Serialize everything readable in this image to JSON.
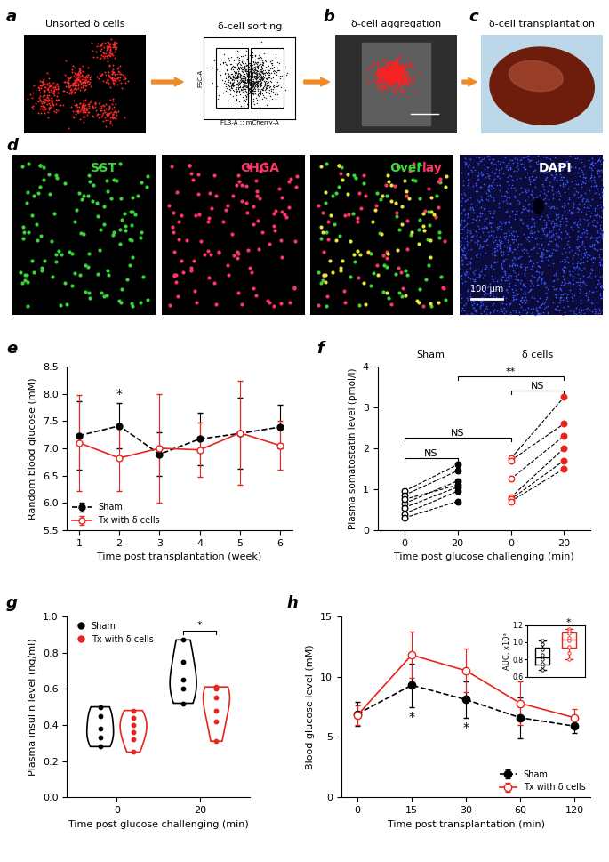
{
  "figure": {
    "panel_labels": [
      "a",
      "b",
      "c",
      "d",
      "e",
      "f",
      "g",
      "h"
    ],
    "image_titles": [
      "Unsorted δ cells",
      "δ-cell sorting",
      "δ-cell aggregation",
      "δ-cell transplantation"
    ],
    "sorting_axes": {
      "xlabel": "FL3-A :: mCherry-A",
      "ylabel": "FSC-A"
    },
    "stains": [
      {
        "parts": [
          {
            "text": "SST",
            "color": "#39d639"
          }
        ]
      },
      {
        "parts": [
          {
            "text": "CHGA",
            "color": "#ff3366"
          }
        ]
      },
      {
        "parts": [
          {
            "text": "Over",
            "color": "#39d639"
          },
          {
            "text": "lay",
            "color": "#ff3366"
          }
        ]
      },
      {
        "parts": [
          {
            "text": "DAPI",
            "color": "#ffffff"
          }
        ]
      }
    ],
    "scale_bar": "100 μm"
  },
  "chart_data": [
    {
      "type": "line",
      "xlabel": "Time post transplantation (week)",
      "ylabel": "Random blood glucose (mM)",
      "x": [
        1,
        2,
        3,
        4,
        5,
        6
      ],
      "xlim": [
        0.7,
        6.3
      ],
      "xticks": [
        1,
        2,
        3,
        4,
        5,
        6
      ],
      "ylim": [
        5.5,
        8.5
      ],
      "yticks": [
        5.5,
        {
          "value": 6,
          "label": "6.0"
        },
        6.5,
        {
          "value": 7,
          "label": "7.0"
        },
        7.5,
        {
          "value": 8,
          "label": "8.0"
        },
        8.5
      ],
      "legend": "lower left",
      "series": [
        {
          "name": "Sham",
          "color": "#000000",
          "marker": "circle",
          "line_style": "dashed",
          "values": [
            7.23,
            7.41,
            6.89,
            7.17,
            7.27,
            7.39
          ],
          "errors": [
            0.63,
            0.42,
            0.4,
            0.48,
            0.65,
            0.4
          ]
        },
        {
          "name": "Tx with δ cells",
          "color": "#e8241c",
          "marker": "open_circle",
          "line_style": "solid",
          "values": [
            7.1,
            6.82,
            7.0,
            6.97,
            7.28,
            7.05
          ],
          "errors": [
            0.88,
            0.6,
            1.0,
            0.5,
            0.95,
            0.45
          ]
        }
      ],
      "annotations": [
        {
          "text": "*",
          "x": 2,
          "y": 7.88
        }
      ]
    },
    {
      "type": "paired_scatter",
      "xlabel": "Time post glucose challenging (min)",
      "ylabel": "Plasma somatostatin level (pmol/l)",
      "categories": [
        "0",
        "20",
        "0",
        "20"
      ],
      "ylim": [
        0,
        4
      ],
      "yticks": [
        0,
        1,
        2,
        3,
        4
      ],
      "series": [
        {
          "name": "Sham",
          "color": "#000000",
          "values": [
            [
              0.95,
              0.85,
              0.65,
              0.75,
              0.55,
              0.4,
              0.3
            ],
            [
              1.6,
              1.45,
              1.2,
              1.1,
              1.05,
              0.95,
              0.7
            ]
          ]
        },
        {
          "name": "δ cells",
          "color": "#e8241c",
          "values": [
            [
              1.75,
              1.7,
              1.25,
              0.8,
              0.75,
              0.7
            ],
            [
              3.25,
              2.6,
              2.3,
              2.0,
              1.7,
              1.5
            ]
          ]
        }
      ],
      "comparisons": [
        {
          "text": "NS",
          "between": [
            0,
            1
          ]
        },
        {
          "text": "NS",
          "between": [
            2,
            3
          ]
        },
        {
          "text": "NS",
          "between": [
            0,
            2
          ]
        },
        {
          "text": "**",
          "between": [
            1,
            3
          ]
        }
      ]
    },
    {
      "type": "violin",
      "xlabel": "Time post glucose challenging (min)",
      "ylabel": "Plasma insulin level (ng/ml)",
      "categories": [
        "0",
        "20"
      ],
      "ylim": [
        0,
        1.0
      ],
      "yticks": [
        {
          "value": 0,
          "label": "0.0"
        },
        {
          "value": 0.2,
          "label": "0.2"
        },
        {
          "value": 0.4,
          "label": "0.4"
        },
        {
          "value": 0.6,
          "label": "0.6"
        },
        {
          "value": 0.8,
          "label": "0.8"
        },
        {
          "value": 1.0,
          "label": "1.0"
        }
      ],
      "legend": "upper left",
      "series": [
        {
          "name": "Sham",
          "color": "#000000",
          "values": [
            [
              0.5,
              0.45,
              0.38,
              0.33,
              0.28
            ],
            [
              0.87,
              0.75,
              0.65,
              0.6,
              0.52
            ]
          ]
        },
        {
          "name": "Tx with δ cells",
          "color": "#e8241c",
          "values": [
            [
              0.48,
              0.44,
              0.4,
              0.36,
              0.32,
              0.25
            ],
            [
              0.61,
              0.6,
              0.55,
              0.48,
              0.42,
              0.31
            ]
          ]
        }
      ],
      "comparisons": [
        {
          "text": "*",
          "category": 1
        }
      ]
    },
    {
      "type": "line",
      "xlabel": "Time post transplantation (min)",
      "ylabel": "Blood glucose level (mM)",
      "categories": [
        "0",
        "15",
        "30",
        "60",
        "120"
      ],
      "ylim": [
        0,
        15
      ],
      "yticks": [
        0,
        5,
        10,
        15
      ],
      "legend": "lower right",
      "series": [
        {
          "name": "Sham",
          "color": "#000000",
          "marker": "circle",
          "line_style": "dashed",
          "values": [
            6.9,
            9.3,
            8.1,
            6.6,
            5.9
          ],
          "errors": [
            1.0,
            1.8,
            1.5,
            1.7,
            0.6
          ]
        },
        {
          "name": "Tx with δ cells",
          "color": "#e8241c",
          "marker": "open_circle",
          "line_style": "solid",
          "values": [
            6.8,
            11.8,
            10.5,
            7.8,
            6.6
          ],
          "errors": [
            0.8,
            1.9,
            1.8,
            1.8,
            0.7
          ]
        }
      ],
      "annotations": [
        {
          "text": "*",
          "category": 1
        },
        {
          "text": "*",
          "category": 2
        }
      ],
      "inset": {
        "type": "box",
        "ylabel": "AUC, x10³",
        "ylim": [
          0.6,
          1.2
        ],
        "yticks": [
          0.6,
          0.8,
          {
            "value": 1.0,
            "label": "1.0"
          },
          1.2
        ],
        "tick_labels": "y",
        "series": [
          {
            "color": "#000000",
            "values": [
              1.02,
              0.98,
              0.92,
              0.85,
              0.8,
              0.75,
              0.72,
              0.68
            ]
          },
          {
            "color": "#e8241c",
            "values": [
              1.15,
              1.13,
              1.1,
              1.05,
              1.02,
              0.95,
              0.88,
              0.8
            ]
          }
        ],
        "annotation": "*"
      }
    }
  ]
}
